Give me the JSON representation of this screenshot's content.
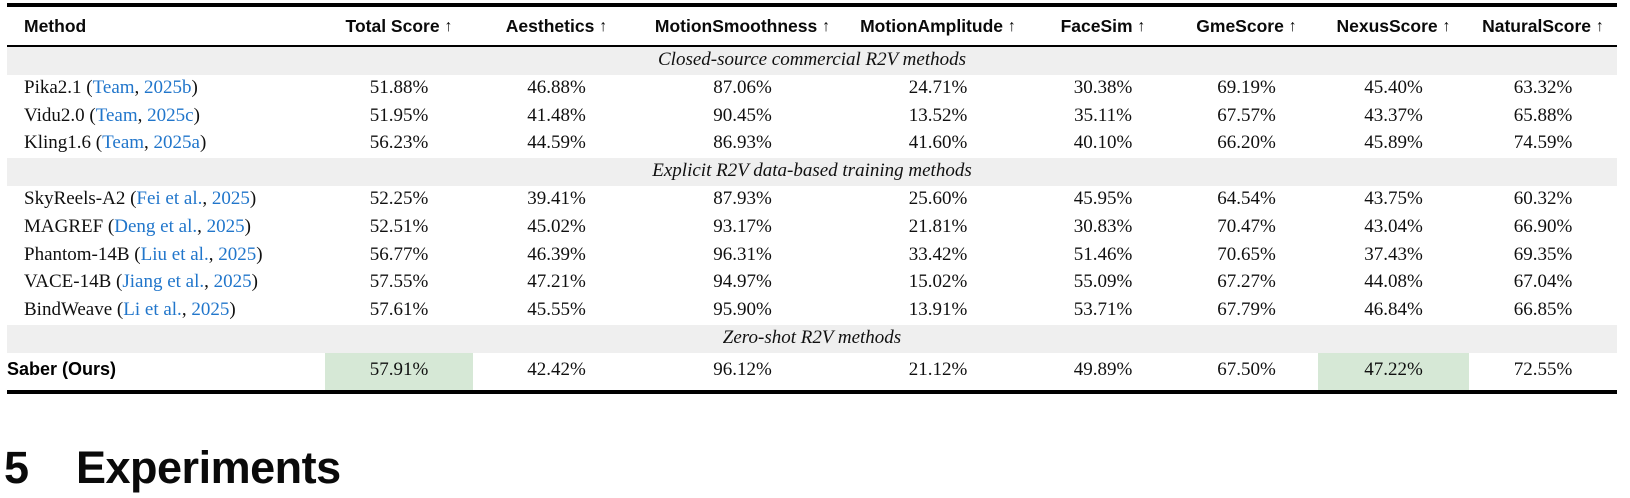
{
  "colors": {
    "highlight_green": "#d6e8d6",
    "link_blue": "#2176cb",
    "band_gray": "#efefef"
  },
  "table": {
    "headers": [
      {
        "label": "Method",
        "arrow": ""
      },
      {
        "label": "Total Score",
        "arrow": "↑"
      },
      {
        "label": "Aesthetics",
        "arrow": "↑"
      },
      {
        "label": "MotionSmoothness",
        "arrow": "↑"
      },
      {
        "label": "MotionAmplitude",
        "arrow": "↑"
      },
      {
        "label": "FaceSim",
        "arrow": "↑"
      },
      {
        "label": "GmeScore",
        "arrow": "↑"
      },
      {
        "label": "NexusScore",
        "arrow": "↑"
      },
      {
        "label": "NaturalScore",
        "arrow": "↑"
      }
    ],
    "sections": [
      {
        "title": "Closed-source commercial R2V methods"
      },
      {
        "title": "Explicit R2V data-based training methods"
      },
      {
        "title": "Zero-shot R2V methods"
      }
    ],
    "rows": [
      {
        "name": "Pika2.1 (",
        "cite": "Team",
        "sep": ", ",
        "year": "2025b",
        "close": ")",
        "values": [
          "51.88%",
          "46.88%",
          "87.06%",
          "24.71%",
          "30.38%",
          "69.19%",
          "45.40%",
          "63.32%"
        ]
      },
      {
        "name": "Vidu2.0 (",
        "cite": "Team",
        "sep": ", ",
        "year": "2025c",
        "close": ")",
        "values": [
          "51.95%",
          "41.48%",
          "90.45%",
          "13.52%",
          "35.11%",
          "67.57%",
          "43.37%",
          "65.88%"
        ]
      },
      {
        "name": "Kling1.6 (",
        "cite": "Team",
        "sep": ", ",
        "year": "2025a",
        "close": ")",
        "values": [
          "56.23%",
          "44.59%",
          "86.93%",
          "41.60%",
          "40.10%",
          "66.20%",
          "45.89%",
          "74.59%"
        ]
      },
      {
        "name": "SkyReels-A2 (",
        "cite": "Fei et al.",
        "sep": ", ",
        "year": "2025",
        "close": ")",
        "values": [
          "52.25%",
          "39.41%",
          "87.93%",
          "25.60%",
          "45.95%",
          "64.54%",
          "43.75%",
          "60.32%"
        ]
      },
      {
        "name": "MAGREF (",
        "cite": "Deng et al.",
        "sep": ", ",
        "year": "2025",
        "close": ")",
        "values": [
          "52.51%",
          "45.02%",
          "93.17%",
          "21.81%",
          "30.83%",
          "70.47%",
          "43.04%",
          "66.90%"
        ]
      },
      {
        "name": "Phantom-14B (",
        "cite": "Liu et al.",
        "sep": ", ",
        "year": "2025",
        "close": ")",
        "values": [
          "56.77%",
          "46.39%",
          "96.31%",
          "33.42%",
          "51.46%",
          "70.65%",
          "37.43%",
          "69.35%"
        ]
      },
      {
        "name": "VACE-14B (",
        "cite": "Jiang et al.",
        "sep": ", ",
        "year": "2025",
        "close": ")",
        "values": [
          "57.55%",
          "47.21%",
          "94.97%",
          "15.02%",
          "55.09%",
          "67.27%",
          "44.08%",
          "67.04%"
        ]
      },
      {
        "name": "BindWeave (",
        "cite": "Li et al.",
        "sep": ", ",
        "year": "2025",
        "close": ")",
        "values": [
          "57.61%",
          "45.55%",
          "95.90%",
          "13.91%",
          "53.71%",
          "67.79%",
          "46.84%",
          "66.85%"
        ]
      },
      {
        "name": "Saber (Ours)",
        "cite": "",
        "sep": "",
        "year": "",
        "close": "",
        "values": [
          "57.91%",
          "42.42%",
          "96.12%",
          "21.12%",
          "49.89%",
          "67.50%",
          "47.22%",
          "72.55%"
        ]
      }
    ]
  },
  "heading": {
    "number": "5",
    "title": "Experiments"
  }
}
